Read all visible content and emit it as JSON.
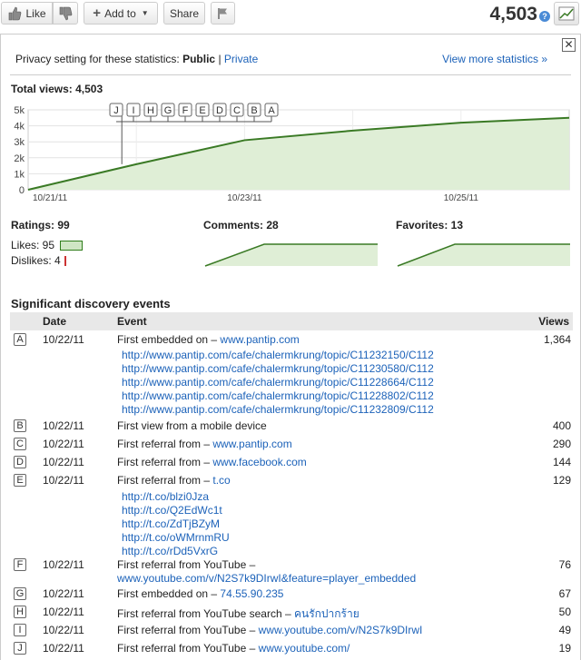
{
  "actionbar": {
    "like_label": "Like",
    "add_to_label": "Add to",
    "share_label": "Share",
    "view_count": "4,503",
    "help_glyph": "?"
  },
  "panel": {
    "close_glyph": "✕",
    "privacy_prefix": "Privacy setting for these statistics:",
    "privacy_public": "Public",
    "privacy_sep": "|",
    "privacy_private": "Private",
    "more_stats": "View more statistics »",
    "total_views": "Total views: 4,503"
  },
  "chart_data": {
    "type": "area",
    "title": "Total views: 4,503",
    "x": [
      "10/21/11",
      "10/22/11",
      "10/23/11",
      "10/24/11",
      "10/25/11",
      "10/26/11"
    ],
    "y": [
      0,
      1600,
      3100,
      3700,
      4200,
      4503
    ],
    "x_ticks": [
      "10/21/11",
      "10/23/11",
      "10/25/11"
    ],
    "y_ticks": [
      "0",
      "1k",
      "2k",
      "3k",
      "4k",
      "5k"
    ],
    "ylim": [
      0,
      5000
    ],
    "grid": true,
    "color": "#3a7a25",
    "fill": "#dfeed6",
    "markers": [
      "J",
      "I",
      "H",
      "G",
      "F",
      "E",
      "D",
      "C",
      "B",
      "A"
    ]
  },
  "ratings": {
    "title": "Ratings: 99",
    "likes_label": "Likes: 95",
    "dislikes_label": "Dislikes: 4",
    "likes": 95,
    "dislikes": 4
  },
  "comments": {
    "title": "Comments: 28"
  },
  "favorites": {
    "title": "Favorites: 13"
  },
  "events": {
    "title": "Significant discovery events",
    "col_date": "Date",
    "col_event": "Event",
    "col_views": "Views",
    "rows": [
      {
        "letter": "A",
        "date": "10/22/11",
        "text": "First embedded on – ",
        "link": "www.pantip.com",
        "views": "1,364",
        "subs": [
          "http://www.pantip.com/cafe/chalermkrung/topic/C11232150/C112",
          "http://www.pantip.com/cafe/chalermkrung/topic/C11230580/C112",
          "http://www.pantip.com/cafe/chalermkrung/topic/C11228664/C112",
          "http://www.pantip.com/cafe/chalermkrung/topic/C11228802/C112",
          "http://www.pantip.com/cafe/chalermkrung/topic/C11232809/C112"
        ]
      },
      {
        "letter": "B",
        "date": "10/22/11",
        "text": "First view from a mobile device",
        "link": "",
        "views": "400"
      },
      {
        "letter": "C",
        "date": "10/22/11",
        "text": "First referral from – ",
        "link": "www.pantip.com",
        "views": "290"
      },
      {
        "letter": "D",
        "date": "10/22/11",
        "text": "First referral from – ",
        "link": "www.facebook.com",
        "views": "144"
      },
      {
        "letter": "E",
        "date": "10/22/11",
        "text": "First referral from – ",
        "link": "t.co",
        "views": "129",
        "subs": [
          "http://t.co/blzi0Jza",
          "http://t.co/Q2EdWc1t",
          "http://t.co/ZdTjBZyM",
          "http://t.co/oWMrnmRU",
          "http://t.co/rDd5VxrG"
        ]
      },
      {
        "letter": "F",
        "date": "10/22/11",
        "text": "First referral from YouTube –",
        "link2": "www.youtube.com/v/N2S7k9DIrwI&feature=player_embedded",
        "views": "76"
      },
      {
        "letter": "G",
        "date": "10/22/11",
        "text": "First embedded on – ",
        "link": "74.55.90.235",
        "views": "67"
      },
      {
        "letter": "H",
        "date": "10/22/11",
        "text": "First referral from YouTube search – ",
        "link": "คนรักปากร้าย",
        "views": "50"
      },
      {
        "letter": "I",
        "date": "10/22/11",
        "text": "First referral from YouTube – ",
        "link": "www.youtube.com/v/N2S7k9DIrwI",
        "views": "49"
      },
      {
        "letter": "J",
        "date": "10/22/11",
        "text": "First referral from YouTube – ",
        "link": "www.youtube.com/",
        "views": "19"
      }
    ]
  }
}
